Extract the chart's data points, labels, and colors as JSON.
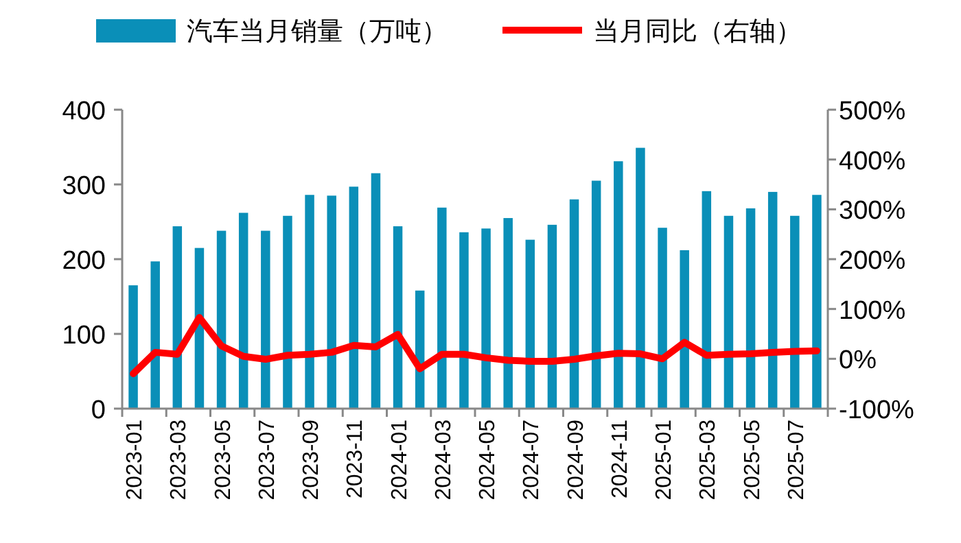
{
  "chart_data": {
    "type": "bar",
    "categories": [
      "2023-01",
      null,
      "2023-03",
      null,
      "2023-05",
      null,
      "2023-07",
      null,
      "2023-09",
      null,
      "2023-11",
      null,
      "2024-01",
      null,
      "2024-03",
      null,
      "2024-05",
      null,
      "2024-07",
      null,
      "2024-09",
      null,
      "2024-11",
      null,
      "2025-01",
      null,
      "2025-03",
      null,
      "2025-05",
      null,
      "2025-07",
      null
    ],
    "series": [
      {
        "name": "汽车当月销量（万吨）",
        "color": "#0a8fb8",
        "values": [
          165,
          197,
          244,
          215,
          238,
          262,
          238,
          258,
          286,
          285,
          297,
          315,
          244,
          158,
          269,
          236,
          241,
          255,
          226,
          246,
          280,
          305,
          331,
          349,
          242,
          212,
          291,
          258,
          268,
          290,
          258,
          286
        ]
      },
      {
        "name": "当月同比（右轴）",
        "type": "line",
        "axis": "y2",
        "color": "#ff0000",
        "values": [
          -30,
          13,
          9,
          83,
          26,
          5,
          -1,
          7,
          9,
          13,
          27,
          24,
          49,
          -20,
          9,
          9,
          2,
          -3,
          -5,
          -5,
          -1,
          6,
          11,
          10,
          0,
          33,
          7,
          9,
          10,
          13,
          15,
          16
        ]
      }
    ],
    "ylim": [
      0,
      400
    ],
    "yticks": [
      0,
      100,
      200,
      300,
      400
    ],
    "y2lim": [
      -100,
      500
    ],
    "y2ticks": [
      {
        "value": -100,
        "label": "-100%"
      },
      {
        "value": 0,
        "label": "0%"
      },
      {
        "value": 100,
        "label": "100%"
      },
      {
        "value": 200,
        "label": "200%"
      },
      {
        "value": 300,
        "label": "300%"
      },
      {
        "value": 400,
        "label": "400%"
      },
      {
        "value": 500,
        "label": "500%"
      }
    ],
    "legend": "top",
    "grid": false
  }
}
